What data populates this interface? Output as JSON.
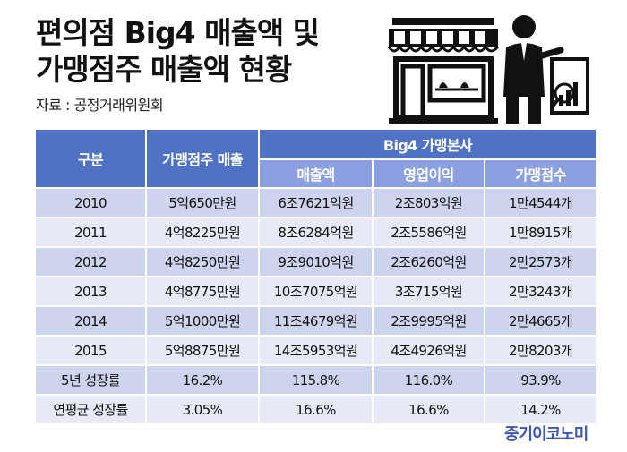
{
  "title": {
    "line1": "편의점 Big4 매출액 및",
    "line2": "가맹점주 매출액 현황"
  },
  "source": "자료 : 공정거래위원회",
  "table": {
    "headers": {
      "category": "구분",
      "owner_sales": "가맹점주 매출",
      "group": "Big4 가맹본사",
      "sub": [
        "매출액",
        "영업이익",
        "가맹점수"
      ]
    },
    "rows": [
      {
        "label": "2010",
        "owner": "5억650만원",
        "sales": "6조7621억원",
        "profit": "2조803억원",
        "stores": "1만4544개"
      },
      {
        "label": "2011",
        "owner": "4억8225만원",
        "sales": "8조6284억원",
        "profit": "2조5586억원",
        "stores": "1만8915개"
      },
      {
        "label": "2012",
        "owner": "4억8250만원",
        "sales": "9조9010억원",
        "profit": "2조6260억원",
        "stores": "2만2573개"
      },
      {
        "label": "2013",
        "owner": "4억8775만원",
        "sales": "10조7075억원",
        "profit": "3조715억원",
        "stores": "2만3243개"
      },
      {
        "label": "2014",
        "owner": "5억1000만원",
        "sales": "11조4679억원",
        "profit": "2조9995억원",
        "stores": "2만4665개"
      },
      {
        "label": "2015",
        "owner": "5억8875만원",
        "sales": "14조5953억원",
        "profit": "4조4926억원",
        "stores": "2만8203개"
      },
      {
        "label": "5년 성장률",
        "owner": "16.2%",
        "sales": "115.8%",
        "profit": "116.0%",
        "stores": "93.9%"
      },
      {
        "label": "연평균 성장률",
        "owner": "3.05%",
        "sales": "16.6%",
        "profit": "16.6%",
        "stores": "14.2%"
      }
    ]
  },
  "brand": "중기이코노미",
  "colors": {
    "header": "#4f72c4",
    "subheader": "#8ba0e0",
    "row_dark": "#cdd5ee",
    "row_light": "#e7eaf6",
    "brand": "#3d55b4"
  },
  "illustration_icons": [
    "storefront-icon",
    "businessman-icon",
    "chart-board-icon"
  ]
}
